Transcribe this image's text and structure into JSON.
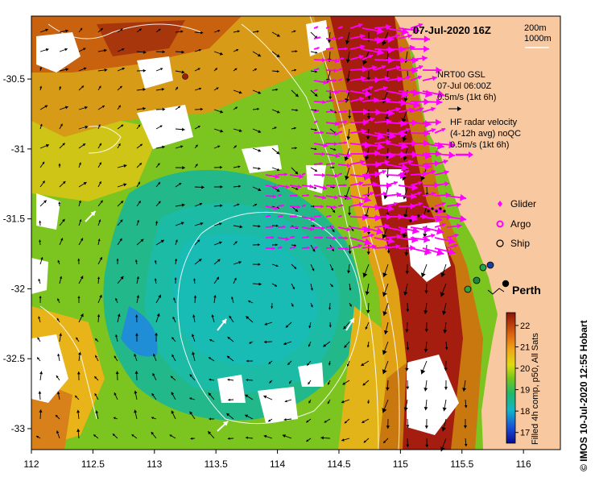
{
  "map": {
    "title": "07-Jul-2020 16Z",
    "depth_labels": [
      "200m",
      "1000m"
    ],
    "x_ticks": [
      "112",
      "112.5",
      "113",
      "113.5",
      "114",
      "114.5",
      "115",
      "115.5",
      "116"
    ],
    "x_tick_values": [
      112,
      112.5,
      113,
      113.5,
      114,
      114.5,
      115,
      115.5,
      116
    ],
    "y_ticks": [
      "-30.5",
      "-31",
      "-31.5",
      "-32",
      "-32.5",
      "-33"
    ],
    "y_tick_values": [
      -30.5,
      -31,
      -31.5,
      -32,
      -32.5,
      -33
    ],
    "lon_range": [
      112,
      116.3
    ],
    "lat_range": [
      -33.15,
      -30.05
    ],
    "current_legend": {
      "line1": "NRT00 GSL",
      "line2": "07-Jul 06:00Z",
      "line3": "0.5m/s (1kt 6h)"
    },
    "radar_legend": {
      "line1": "HF radar velocity",
      "line2": "(4-12h avg) noQC",
      "line3": "0.5m/s (1kt 6h)"
    },
    "markers_legend": {
      "glider": "Glider",
      "argo": "Argo",
      "ship": "Ship"
    },
    "city_label": "Perth",
    "colorbar": {
      "ticks": [
        "22",
        "21",
        "20",
        "19",
        "18",
        "17"
      ],
      "values": [
        22,
        21,
        20,
        19,
        18,
        17
      ],
      "range": [
        16.5,
        22.6
      ],
      "caption": "Filled 4h comp, p50, All Sats"
    },
    "credit": "© IMOS 10-Jul-2020 12:55 Hobart",
    "colors": {
      "land": "#f8c9a0",
      "cool": "#1ab9b0",
      "warm": "#a51d0e",
      "radar": "#ff00ff",
      "model_arrow": "#000000"
    }
  }
}
